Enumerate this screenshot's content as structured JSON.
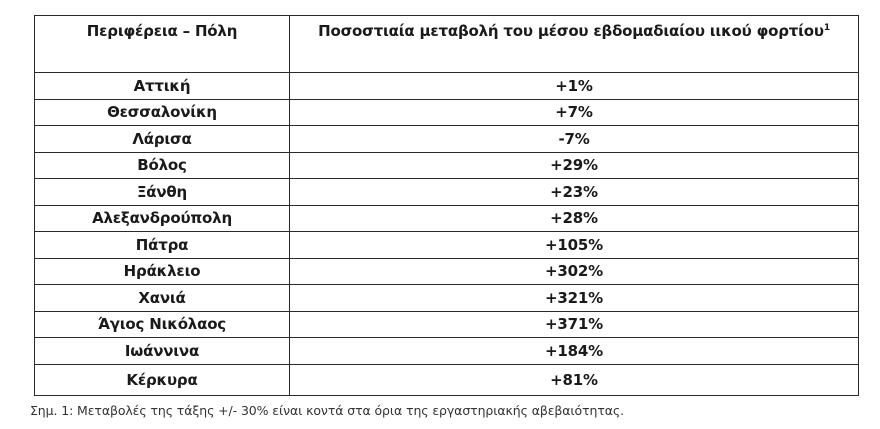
{
  "table": {
    "headers": {
      "region_city": "Περιφέρεια – Πόλη",
      "change": "Ποσοστιαία μεταβολή του μέσου εβδομαδιαίου ιικού φορτίου",
      "change_footnote_marker": "1"
    },
    "rows": [
      {
        "city": "Αττική",
        "change": "+1%"
      },
      {
        "city": "Θεσσαλονίκη",
        "change": "+7%"
      },
      {
        "city": "Λάρισα",
        "change": "-7%"
      },
      {
        "city": "Βόλος",
        "change": "+29%"
      },
      {
        "city": "Ξάνθη",
        "change": "+23%"
      },
      {
        "city": "Αλεξανδρούπολη",
        "change": "+28%"
      },
      {
        "city": "Πάτρα",
        "change": "+105%"
      },
      {
        "city": "Ηράκλειο",
        "change": "+302%"
      },
      {
        "city": "Χανιά",
        "change": "+321%"
      },
      {
        "city": "Άγιος Νικόλαος",
        "change": "+371%"
      },
      {
        "city": "Ιωάννινα",
        "change": "+184%"
      },
      {
        "city": "Κέρκυρα",
        "change": "+81%"
      }
    ]
  },
  "footnote": "Σημ. 1: Μεταβολές της τάξης +/- 30% είναι κοντά στα όρια της εργαστηριακής αβεβαιότητας."
}
